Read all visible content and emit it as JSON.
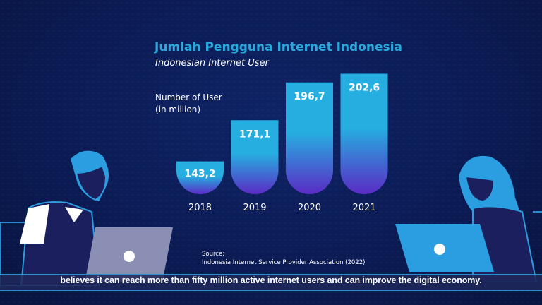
{
  "chart_data": {
    "type": "bar",
    "title": "Jumlah Pengguna Internet Indonesia",
    "subtitle": "Indonesian Internet User",
    "ylabel_lines": [
      "Number of User",
      "(in million)"
    ],
    "xlabel": "",
    "categories": [
      "2018",
      "2019",
      "2020",
      "2021"
    ],
    "values": [
      143.2,
      171.1,
      196.7,
      202.6
    ],
    "value_labels": [
      "143,2",
      "171,1",
      "196,7",
      "202,6"
    ],
    "grid": false,
    "colors": {
      "top": "#26aee0",
      "bottom": "#5a2bc4"
    }
  },
  "source": {
    "label": "Source:",
    "text": "Indonesia Internet Service Provider Association (2022)"
  },
  "caption": "believes it can reach more than fifty million active internet users and can improve the digital economy."
}
